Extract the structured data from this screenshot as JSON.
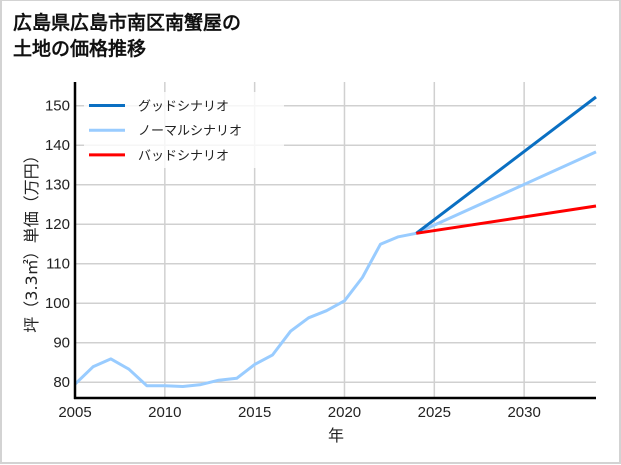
{
  "title": {
    "line1": "広島県広島市南区南蟹屋の",
    "line2": "土地の価格推移"
  },
  "chart_data": {
    "type": "line",
    "title": "広島県広島市南区南蟹屋の土地の価格推移",
    "xlabel": "年",
    "ylabel": "坪（3.3㎡）単価（万円）",
    "xlim": [
      2005,
      2034
    ],
    "ylim": [
      76,
      156
    ],
    "xticks": [
      2005,
      2010,
      2015,
      2020,
      2025,
      2030
    ],
    "yticks": [
      80,
      90,
      100,
      110,
      120,
      130,
      140,
      150
    ],
    "grid": true,
    "legend_position": "upper left",
    "series": [
      {
        "name": "グッドシナリオ",
        "color": "#0a6fc2",
        "x": [
          2024,
          2034
        ],
        "values": [
          117.7,
          152.2
        ]
      },
      {
        "name": "ノーマルシナリオ",
        "color": "#99ccff",
        "x": [
          2005,
          2006,
          2007,
          2008,
          2009,
          2010,
          2011,
          2012,
          2013,
          2014,
          2015,
          2016,
          2017,
          2018,
          2019,
          2020,
          2021,
          2022,
          2023,
          2024,
          2034
        ],
        "values": [
          79.5,
          83.9,
          85.9,
          83.3,
          79.1,
          79.1,
          78.9,
          79.4,
          80.5,
          81.0,
          84.5,
          86.9,
          92.9,
          96.3,
          98.1,
          100.6,
          106.5,
          114.9,
          116.8,
          117.7,
          138.3
        ]
      },
      {
        "name": "バッドシナリオ",
        "color": "#ff0000",
        "x": [
          2024,
          2034
        ],
        "values": [
          117.7,
          124.6
        ]
      }
    ]
  }
}
